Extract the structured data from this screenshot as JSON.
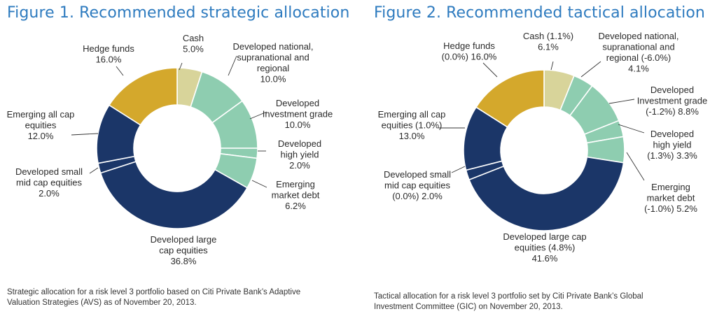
{
  "chart_data": [
    {
      "type": "donut",
      "title": "Figure 1. Recommended strategic allocation",
      "caption_lines": [
        "Strategic allocation for a risk level 3 portfolio based on Citi Private Bank’s Adaptive",
        "Valuation Strategies (AVS) as of November 20, 2013."
      ],
      "slices": [
        {
          "value": 5.0,
          "color": "#d8d49a",
          "label_lines": [
            "Cash",
            "5.0%"
          ]
        },
        {
          "value": 10.0,
          "color": "#8ecdb0",
          "label_lines": [
            "Developed national,",
            "supranational and",
            "regional",
            "10.0%"
          ]
        },
        {
          "value": 10.0,
          "color": "#8ecdb0",
          "label_lines": [
            "Developed",
            "Investment grade",
            "10.0%"
          ]
        },
        {
          "value": 2.0,
          "color": "#8ecdb0",
          "label_lines": [
            "Developed",
            "high yield",
            "2.0%"
          ]
        },
        {
          "value": 6.2,
          "color": "#8ecdb0",
          "label_lines": [
            "Emerging",
            "market debt",
            "6.2%"
          ]
        },
        {
          "value": 36.8,
          "color": "#1b3668",
          "label_lines": [
            "Developed large",
            "cap equities",
            "36.8%"
          ]
        },
        {
          "value": 2.0,
          "color": "#1b3668",
          "label_lines": [
            "Developed small",
            "mid cap equities",
            "2.0%"
          ]
        },
        {
          "value": 12.0,
          "color": "#1b3668",
          "label_lines": [
            "Emerging all cap",
            "equities",
            "12.0%"
          ]
        },
        {
          "value": 16.0,
          "color": "#d4a82c",
          "label_lines": [
            "Hedge funds",
            "16.0%"
          ]
        }
      ]
    },
    {
      "type": "donut",
      "title": "Figure 2. Recommended tactical allocation",
      "caption_lines": [
        "Tactical allocation for a risk level 3 portfolio set by Citi Private Bank’s Global",
        "Investment Committee (GIC) on November 20, 2013."
      ],
      "slices": [
        {
          "value": 6.1,
          "color": "#d8d49a",
          "label_lines": [
            "Cash (1.1%)",
            "6.1%"
          ]
        },
        {
          "value": 4.1,
          "color": "#8ecdb0",
          "label_lines": [
            "Developed national,",
            "supranational and",
            "regional (-6.0%)",
            "4.1%"
          ]
        },
        {
          "value": 8.8,
          "color": "#8ecdb0",
          "label_lines": [
            "Developed",
            "Investment grade",
            "(-1.2%) 8.8%"
          ]
        },
        {
          "value": 3.3,
          "color": "#8ecdb0",
          "label_lines": [
            "Developed",
            "high yield",
            "(1.3%) 3.3%"
          ]
        },
        {
          "value": 5.2,
          "color": "#8ecdb0",
          "label_lines": [
            "Emerging",
            "market debt",
            "(-1.0%) 5.2%"
          ]
        },
        {
          "value": 41.6,
          "color": "#1b3668",
          "label_lines": [
            "Developed large cap",
            "equities (4.8%)",
            "41.6%"
          ]
        },
        {
          "value": 2.0,
          "color": "#1b3668",
          "label_lines": [
            "Developed small",
            "mid cap equities",
            "(0.0%) 2.0%"
          ]
        },
        {
          "value": 13.0,
          "color": "#1b3668",
          "label_lines": [
            "Emerging all cap",
            "equities (1.0%)",
            "13.0%"
          ]
        },
        {
          "value": 16.0,
          "color": "#d4a82c",
          "label_lines": [
            "Hedge funds",
            "(0.0%) 16.0%"
          ]
        }
      ]
    }
  ]
}
